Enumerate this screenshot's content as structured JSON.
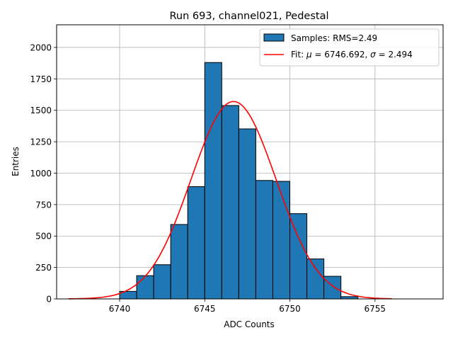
{
  "chart_data": {
    "type": "bar",
    "title": "Run 693, channel021, Pedestal",
    "xlabel": "ADC Counts",
    "ylabel": "Entries",
    "xlim": [
      6736.3,
      6759.0
    ],
    "ylim": [
      0,
      2180
    ],
    "xticks": [
      6740,
      6745,
      6750,
      6755
    ],
    "yticks": [
      0,
      250,
      500,
      750,
      1000,
      1250,
      1500,
      1750,
      2000
    ],
    "grid": true,
    "legend_position": "top-right",
    "bin_width": 1,
    "series": [
      {
        "name": "Samples: RMS=2.49",
        "kind": "histogram",
        "color": "#1f77b4",
        "bin_starts": [
          6740,
          6741,
          6742,
          6743,
          6744,
          6745,
          6746,
          6747,
          6748,
          6749,
          6750,
          6751,
          6752,
          6753
        ],
        "values": [
          60,
          185,
          272,
          592,
          893,
          1880,
          1538,
          1352,
          942,
          935,
          678,
          318,
          180,
          18
        ]
      },
      {
        "name_parts": [
          "Fit: ",
          "μ",
          " = 6746.692, ",
          "σ",
          " = 2.494"
        ],
        "kind": "gaussian-fit",
        "color": "#ff0000",
        "mu": 6746.692,
        "sigma": 2.494,
        "amplitude": 1570,
        "x_range": [
          6737,
          6756
        ]
      }
    ]
  }
}
